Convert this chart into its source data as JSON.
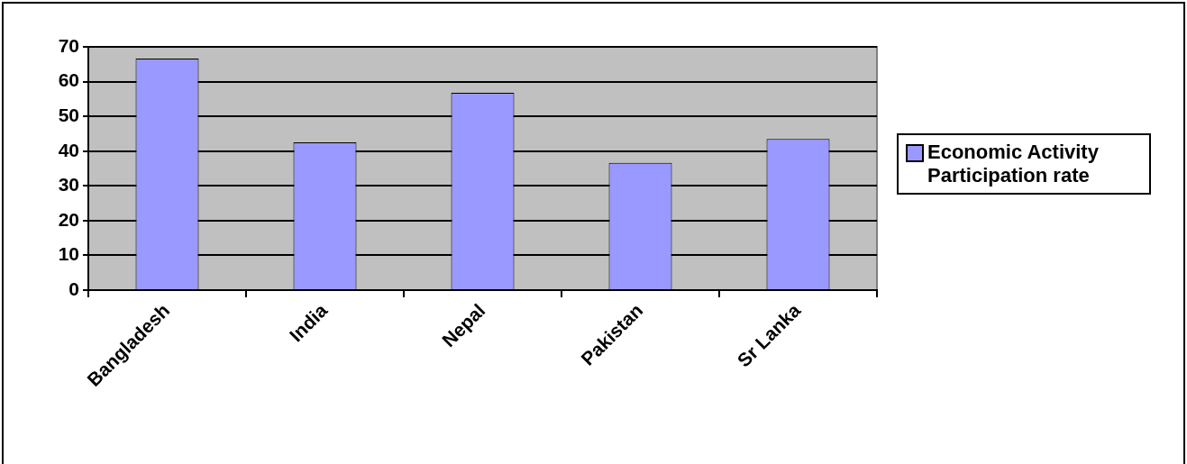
{
  "chart_data": {
    "type": "bar",
    "categories": [
      "Bangladesh",
      "India",
      "Nepal",
      "Pakistan",
      "Sr Lanka"
    ],
    "series": [
      {
        "name": "Economic Activity Participation rate",
        "color": "#9999ff",
        "values": [
          66.6,
          42.5,
          56.8,
          36.6,
          43.5
        ]
      }
    ],
    "ylim": [
      0,
      70
    ],
    "yticks": [
      0,
      10,
      20,
      30,
      40,
      50,
      60,
      70
    ],
    "grid": "y",
    "legend": "right"
  }
}
